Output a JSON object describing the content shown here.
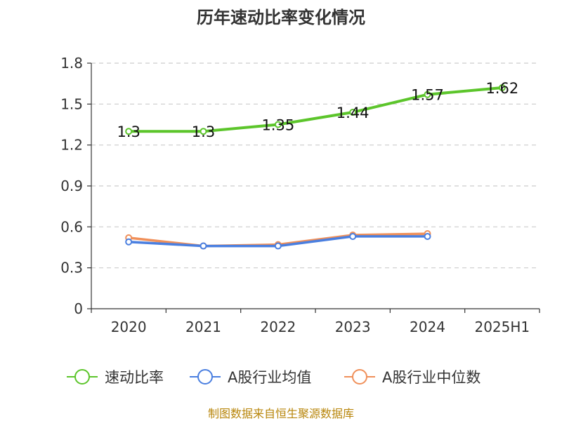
{
  "chart_data": {
    "type": "line",
    "title": "历年速动比率变化情况",
    "categories": [
      "2020",
      "2021",
      "2022",
      "2023",
      "2024",
      "2025H1"
    ],
    "ylim": [
      0,
      1.8
    ],
    "yticks": [
      "0",
      "0.3",
      "0.6",
      "0.9",
      "1.2",
      "1.5",
      "1.8"
    ],
    "grid": true,
    "legend_position": "bottom",
    "series": [
      {
        "name": "速动比率",
        "color": "#5cc52b",
        "values": [
          1.3,
          1.3,
          1.35,
          1.44,
          1.57,
          1.62
        ],
        "labels": [
          "1.3",
          "1.3",
          "1.35",
          "1.44",
          "1.57",
          "1.62"
        ]
      },
      {
        "name": "A股行业均值",
        "color": "#4a7fe0",
        "values": [
          0.49,
          0.46,
          0.46,
          0.53,
          0.53,
          null
        ]
      },
      {
        "name": "A股行业中位数",
        "color": "#f0905a",
        "values": [
          0.52,
          0.46,
          0.47,
          0.54,
          0.55,
          null
        ]
      }
    ]
  },
  "source": "制图数据来自恒生聚源数据库"
}
